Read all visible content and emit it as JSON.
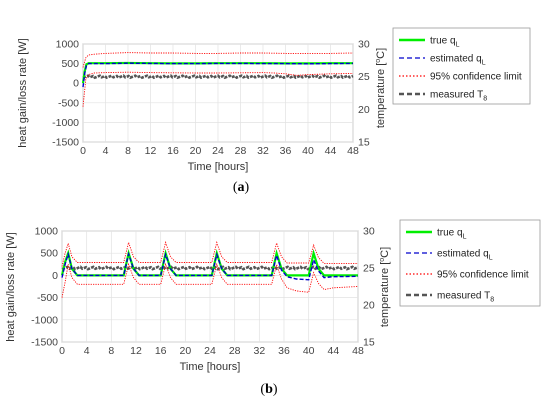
{
  "chart_data": [
    {
      "type": "line",
      "panel_label": {
        "open": "(",
        "letter": "a",
        "close": ")"
      },
      "xlabel": "Time [hours]",
      "ylabel": "heat gain/loss rate [W]",
      "y2label": {
        "text": "temperature [",
        "sup": "o",
        "unit": "C]"
      },
      "xlim": [
        0,
        48
      ],
      "ylim": [
        -1500,
        1000
      ],
      "y2lim": [
        15,
        30
      ],
      "xticks": [
        0,
        4,
        8,
        12,
        16,
        20,
        24,
        28,
        32,
        36,
        40,
        44,
        48
      ],
      "yticks": [
        -1500,
        -1000,
        -500,
        0,
        500,
        1000
      ],
      "y2ticks": [
        15,
        20,
        25,
        30
      ],
      "grid": true,
      "legend": {
        "position": "right",
        "entries": [
          {
            "main": "true q",
            "sub": "L",
            "color": "#00ee00",
            "dash": "solid"
          },
          {
            "main": "estimated q",
            "sub": "L",
            "color": "#0000cc",
            "dash": "dashed"
          },
          {
            "main": "95% confidence limit",
            "sub": "",
            "color": "#ff0000",
            "dash": "dotted"
          },
          {
            "main": "measured T",
            "sub": "8",
            "color": "#555555",
            "dash": "dashed"
          }
        ]
      },
      "series": [
        {
          "name": "true q_L",
          "color": "#00ee00",
          "x": [
            0,
            0.3,
            0.6,
            1,
            4,
            8,
            12,
            16,
            20,
            24,
            28,
            32,
            36,
            40,
            44,
            48
          ],
          "y": [
            0,
            300,
            480,
            510,
            510,
            515,
            510,
            505,
            505,
            510,
            510,
            510,
            505,
            505,
            510,
            510
          ]
        },
        {
          "name": "estimated q_L",
          "color": "#0000cc",
          "x": [
            0,
            0.3,
            0.6,
            1,
            4,
            8,
            12,
            16,
            20,
            24,
            28,
            32,
            36,
            40,
            44,
            48
          ],
          "y": [
            -100,
            250,
            450,
            500,
            500,
            510,
            505,
            500,
            500,
            505,
            505,
            500,
            500,
            495,
            500,
            505
          ]
        },
        {
          "name": "95% confidence limit (upper)",
          "color": "#ff0000",
          "x": [
            0,
            0.5,
            1,
            2,
            4,
            8,
            12,
            16,
            20,
            24,
            28,
            32,
            36,
            40,
            44,
            48
          ],
          "y": [
            400,
            650,
            720,
            740,
            760,
            780,
            770,
            770,
            760,
            760,
            770,
            770,
            760,
            760,
            760,
            770
          ]
        },
        {
          "name": "95% confidence limit (lower)",
          "color": "#ff0000",
          "x": [
            0,
            0.5,
            1,
            2,
            4,
            8,
            12,
            16,
            20,
            24,
            28,
            32,
            34,
            36,
            38,
            40,
            44,
            48
          ],
          "y": [
            -600,
            100,
            220,
            260,
            270,
            280,
            270,
            265,
            260,
            260,
            265,
            270,
            260,
            240,
            200,
            220,
            240,
            250
          ]
        },
        {
          "name": "measured T_8",
          "color": "#555555",
          "axis": "y2",
          "x": [
            0,
            48
          ],
          "y": [
            25,
            25
          ]
        }
      ]
    },
    {
      "type": "line",
      "panel_label": {
        "open": "(",
        "letter": "b",
        "close": ")"
      },
      "xlabel": "Time [hours]",
      "ylabel": "heat gain/loss rate [W]",
      "y2label": {
        "text": "temperature [",
        "sup": "o",
        "unit": "C]"
      },
      "xlim": [
        0,
        48
      ],
      "ylim": [
        -1500,
        1000
      ],
      "y2lim": [
        15,
        30
      ],
      "xticks": [
        0,
        4,
        8,
        12,
        16,
        20,
        24,
        28,
        32,
        36,
        40,
        44,
        48
      ],
      "yticks": [
        -1500,
        -1000,
        -500,
        0,
        500,
        1000
      ],
      "y2ticks": [
        15,
        20,
        25,
        30
      ],
      "grid": true,
      "legend": {
        "position": "right",
        "entries": [
          {
            "main": "true q",
            "sub": "L",
            "color": "#00ee00",
            "dash": "solid"
          },
          {
            "main": "estimated q",
            "sub": "L",
            "color": "#0000cc",
            "dash": "dashed"
          },
          {
            "main": "95% confidence limit",
            "sub": "",
            "color": "#ff0000",
            "dash": "dotted"
          },
          {
            "main": "measured T",
            "sub": "8",
            "color": "#555555",
            "dash": "dashed"
          }
        ]
      },
      "series": [
        {
          "name": "true q_L",
          "color": "#00ee00",
          "x": [
            0,
            0.5,
            1,
            1.6,
            2.5,
            10,
            10.8,
            11.6,
            12.5,
            16,
            16.8,
            17.6,
            18.5,
            24.3,
            25.1,
            25.9,
            26.8,
            34,
            34.8,
            35.6,
            36.5,
            40,
            40.8,
            41.6,
            42.5,
            48
          ],
          "y": [
            0,
            300,
            500,
            150,
            0,
            0,
            500,
            150,
            0,
            0,
            500,
            150,
            0,
            0,
            500,
            150,
            0,
            0,
            500,
            150,
            0,
            0,
            500,
            150,
            0,
            0
          ]
        },
        {
          "name": "estimated q_L",
          "color": "#0000cc",
          "x": [
            0,
            0.5,
            1,
            1.6,
            2.5,
            10,
            10.8,
            11.6,
            12.5,
            16,
            16.8,
            17.6,
            18.5,
            24.3,
            25.1,
            25.9,
            26.8,
            34,
            34.8,
            35.6,
            36.5,
            38,
            40,
            40.8,
            41.6,
            42.5,
            44,
            48
          ],
          "y": [
            -50,
            250,
            480,
            150,
            0,
            0,
            480,
            150,
            0,
            0,
            470,
            150,
            0,
            0,
            470,
            150,
            0,
            0,
            450,
            120,
            -30,
            -80,
            -100,
            350,
            100,
            -50,
            -30,
            -20
          ]
        },
        {
          "name": "95% confidence limit (upper)",
          "color": "#ff0000",
          "x": [
            0,
            0.5,
            1,
            1.6,
            2.5,
            10,
            10.8,
            11.6,
            12.5,
            16,
            16.8,
            17.6,
            18.5,
            24.3,
            25.1,
            25.9,
            26.8,
            34,
            34.8,
            35.6,
            36.5,
            40,
            40.8,
            41.6,
            42.5,
            48
          ],
          "y": [
            200,
            500,
            720,
            420,
            290,
            290,
            740,
            420,
            290,
            290,
            740,
            420,
            290,
            290,
            740,
            420,
            290,
            290,
            730,
            420,
            280,
            280,
            680,
            400,
            270,
            270
          ]
        },
        {
          "name": "95% confidence limit (lower)",
          "color": "#ff0000",
          "x": [
            0,
            0.5,
            1,
            1.6,
            2.5,
            10,
            10.8,
            11.6,
            12.5,
            16,
            16.8,
            17.6,
            18.5,
            24.3,
            25.1,
            25.9,
            26.8,
            34,
            34.8,
            35.6,
            36.5,
            38,
            40,
            40.8,
            41.6,
            42.5,
            44,
            48
          ],
          "y": [
            -500,
            -150,
            250,
            -50,
            -200,
            -200,
            250,
            -50,
            -200,
            -200,
            250,
            -50,
            -200,
            -200,
            250,
            -50,
            -200,
            -200,
            240,
            -80,
            -280,
            -350,
            -380,
            60,
            -180,
            -320,
            -280,
            -250
          ]
        },
        {
          "name": "measured T_8",
          "color": "#555555",
          "axis": "y2",
          "x": [
            0,
            48
          ],
          "y": [
            25,
            25
          ]
        }
      ]
    }
  ]
}
